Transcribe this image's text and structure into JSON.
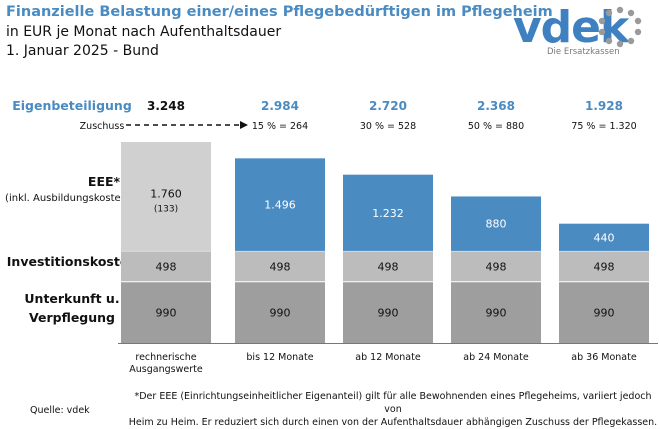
{
  "title": "Finanzielle Belastung einer/eines Pflegebedürftigen im Pflegeheim",
  "subtitle": "in EUR je Monat nach Aufenthaltsdauer",
  "date_line": "1. Januar 2025 - Bund",
  "logo": {
    "text": "vdek",
    "tagline": "Die Ersatzkassen"
  },
  "row_labels": {
    "eigenbeteiligung": "Eigenbeteiligung",
    "zuschuss": "Zuschuss",
    "eee": "EEE*",
    "eee_sub": "(inkl. Ausbildungskosten)",
    "invest": "Investitionskosten",
    "unterkunft_1": "Unterkunft u.",
    "unterkunft_2": "Verpflegung"
  },
  "footnote_1": "*Der EEE (Einrichtungseinheitlicher Eigenanteil) gilt für alle Bewohnenden eines Pflegeheims, variiert jedoch von",
  "footnote_2": "Heim zu Heim. Er reduziert sich durch einen von der Aufenthaltsdauer abhängigen Zuschuss der Pflegekassen.",
  "source": "Quelle: vdek",
  "colors": {
    "title": "#4a8bc2",
    "baseline_bar": "#d0d0d0",
    "eee_bar": "#4a8bc2",
    "invest_bar": "#bcbcbc",
    "unterkunft_bar": "#9e9e9e",
    "highlight_text": "#4a8bc2"
  },
  "chart_data": {
    "type": "bar",
    "stacked": true,
    "categories": [
      "rechnerische Ausgangswerte",
      "bis 12 Monate",
      "ab 12 Monate",
      "ab 24 Monate",
      "ab 36 Monate"
    ],
    "category_labels": [
      [
        "rechnerische",
        "Ausgangswerte"
      ],
      [
        "bis 12 Monate"
      ],
      [
        "ab 12 Monate"
      ],
      [
        "ab 24 Monate"
      ],
      [
        "ab 36 Monate"
      ]
    ],
    "series": [
      {
        "name": "Unterkunft u. Verpflegung",
        "values": [
          990,
          990,
          990,
          990,
          990
        ]
      },
      {
        "name": "Investitionskosten",
        "values": [
          498,
          498,
          498,
          498,
          498
        ]
      },
      {
        "name": "EEE* (inkl. Ausbildungskosten)",
        "values": [
          1760,
          1496,
          1232,
          880,
          440
        ]
      }
    ],
    "eee_note_first": "(133)",
    "eigenbeteiligung": [
      3248,
      2984,
      2720,
      2368,
      1928
    ],
    "eigenbeteiligung_labels": [
      "3.248",
      "2.984",
      "2.720",
      "2.368",
      "1.928"
    ],
    "zuschuss_labels": [
      "",
      "15 % = 264",
      "30 % = 528",
      "50 % = 880",
      "75 % = 1.320"
    ],
    "unterkunft_labels": [
      "990",
      "990",
      "990",
      "990",
      "990"
    ],
    "invest_labels": [
      "498",
      "498",
      "498",
      "498",
      "498"
    ],
    "eee_labels": [
      "1.760",
      "1.496",
      "1.232",
      "880",
      "440"
    ],
    "ylim": [
      0,
      3400
    ],
    "grid": false,
    "legend": "row labels on left"
  }
}
